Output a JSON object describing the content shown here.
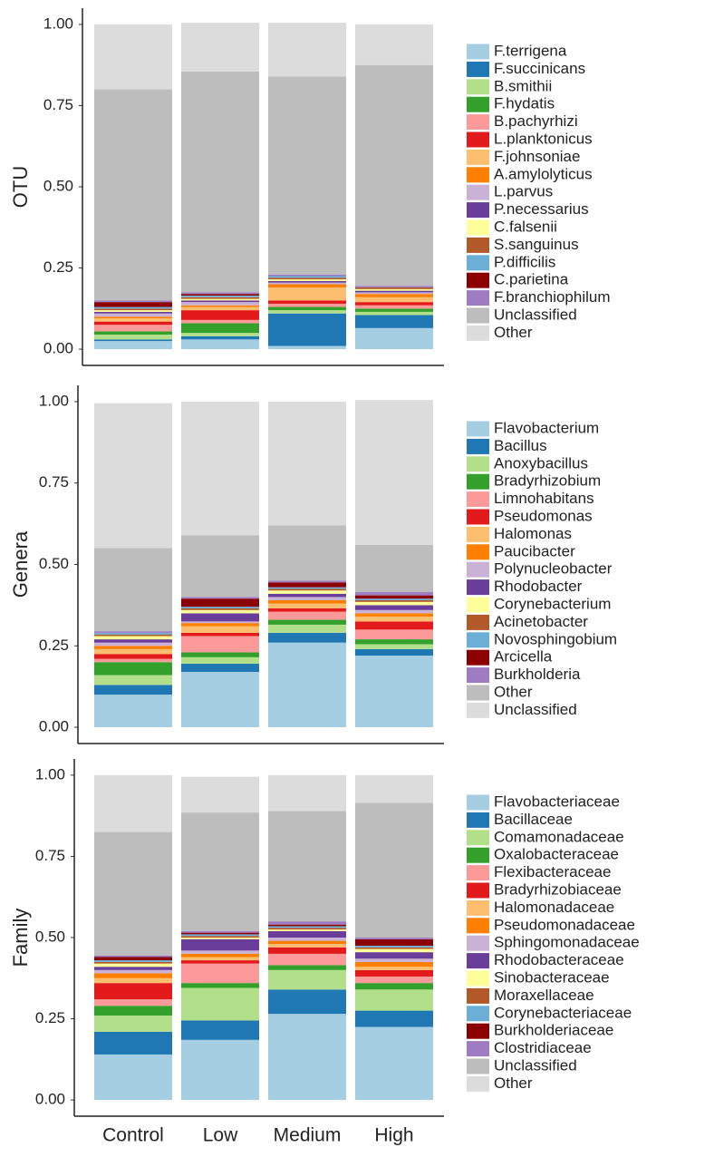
{
  "chart_data": [
    {
      "type": "stacked_bar",
      "ylabel": "OTU",
      "ylim": [
        -0.05,
        1.05
      ],
      "yticks": [
        {
          "value": 0,
          "label": "0.00"
        },
        {
          "value": 0.25,
          "label": "0.25"
        },
        {
          "value": 0.5,
          "label": "0.50"
        },
        {
          "value": 0.75,
          "label": "0.75"
        },
        {
          "value": 1,
          "label": "1.00"
        }
      ],
      "series": [
        {
          "name": "F.terrigena",
          "color": "#a6cee3",
          "values": [
            0.025,
            0.03,
            0.01,
            0.065
          ]
        },
        {
          "name": "F.succinicans",
          "color": "#1f78b4",
          "values": [
            0.005,
            0.01,
            0.1,
            0.04
          ]
        },
        {
          "name": "B.smithii",
          "color": "#b2df8a",
          "values": [
            0.015,
            0.01,
            0.01,
            0.01
          ]
        },
        {
          "name": "F.hydatis",
          "color": "#33a02c",
          "values": [
            0.01,
            0.03,
            0.01,
            0.01
          ]
        },
        {
          "name": "B.pachyrhizi",
          "color": "#fb9a99",
          "values": [
            0.02,
            0.01,
            0.01,
            0.01
          ]
        },
        {
          "name": "L.planktonicus",
          "color": "#e31a1c",
          "values": [
            0.01,
            0.03,
            0.01,
            0.01
          ]
        },
        {
          "name": "F.johnsoniae",
          "color": "#fdbf6f",
          "values": [
            0.01,
            0.01,
            0.04,
            0.015
          ]
        },
        {
          "name": "A.amylolyticus",
          "color": "#ff7f00",
          "values": [
            0.005,
            0.005,
            0.01,
            0.01
          ]
        },
        {
          "name": "L.parvus",
          "color": "#cab2d6",
          "values": [
            0.01,
            0.01,
            0.005,
            0.005
          ]
        },
        {
          "name": "P.necessarius",
          "color": "#6a3d9a",
          "values": [
            0.005,
            0.005,
            0.005,
            0.005
          ]
        },
        {
          "name": "C.falsenii",
          "color": "#ffff99",
          "values": [
            0.005,
            0.005,
            0.005,
            0.005
          ]
        },
        {
          "name": "S.sanguinus",
          "color": "#b15928",
          "values": [
            0.005,
            0.005,
            0.005,
            0.005
          ]
        },
        {
          "name": "P.difficilis",
          "color": "#6baed6",
          "values": [
            0.005,
            0.005,
            0.005,
            0
          ]
        },
        {
          "name": "C.parietina",
          "color": "#8b0000",
          "values": [
            0.015,
            0.005,
            0,
            0
          ]
        },
        {
          "name": "F.branchiophilum",
          "color": "#9e7cc1",
          "values": [
            0.005,
            0.005,
            0.005,
            0.005
          ]
        },
        {
          "name": "Unclassified",
          "color": "#bdbdbd",
          "values": [
            0.65,
            0.68,
            0.61,
            0.68
          ]
        },
        {
          "name": "Other",
          "color": "#dcdcdc",
          "values": [
            0.2,
            0.15,
            0.165,
            0.125
          ]
        }
      ]
    },
    {
      "type": "stacked_bar",
      "ylabel": "Genera",
      "ylim": [
        -0.05,
        1.05
      ],
      "yticks": [
        {
          "value": 0,
          "label": "0.00"
        },
        {
          "value": 0.25,
          "label": "0.25"
        },
        {
          "value": 0.5,
          "label": "0.50"
        },
        {
          "value": 0.75,
          "label": "0.75"
        },
        {
          "value": 1,
          "label": "1.00"
        }
      ],
      "series": [
        {
          "name": "Flavobacterium",
          "color": "#a6cee3",
          "values": [
            0.1,
            0.17,
            0.26,
            0.22
          ]
        },
        {
          "name": "Bacillus",
          "color": "#1f78b4",
          "values": [
            0.03,
            0.025,
            0.03,
            0.02
          ]
        },
        {
          "name": "Anoxybacillus",
          "color": "#b2df8a",
          "values": [
            0.03,
            0.02,
            0.025,
            0.015
          ]
        },
        {
          "name": "Bradyrhizobium",
          "color": "#33a02c",
          "values": [
            0.04,
            0.015,
            0.015,
            0.015
          ]
        },
        {
          "name": "Limnohabitans",
          "color": "#fb9a99",
          "values": [
            0.01,
            0.05,
            0.025,
            0.03
          ]
        },
        {
          "name": "Pseudomonas",
          "color": "#e31a1c",
          "values": [
            0.015,
            0.01,
            0.01,
            0.025
          ]
        },
        {
          "name": "Halomonas",
          "color": "#fdbf6f",
          "values": [
            0.015,
            0.02,
            0.015,
            0.015
          ]
        },
        {
          "name": "Paucibacter",
          "color": "#ff7f00",
          "values": [
            0.01,
            0.01,
            0.01,
            0.01
          ]
        },
        {
          "name": "Polynucleobacter",
          "color": "#cab2d6",
          "values": [
            0.01,
            0.005,
            0.01,
            0.01
          ]
        },
        {
          "name": "Rhodobacter",
          "color": "#6a3d9a",
          "values": [
            0.01,
            0.025,
            0.01,
            0.015
          ]
        },
        {
          "name": "Corynebacterium",
          "color": "#ffff99",
          "values": [
            0.01,
            0.01,
            0.01,
            0.01
          ]
        },
        {
          "name": "Acinetobacter",
          "color": "#b15928",
          "values": [
            0.005,
            0.005,
            0.005,
            0.005
          ]
        },
        {
          "name": "Novosphingobium",
          "color": "#6baed6",
          "values": [
            0.005,
            0.005,
            0.005,
            0.005
          ]
        },
        {
          "name": "Arcicella",
          "color": "#8b0000",
          "values": [
            0,
            0.025,
            0.015,
            0.01
          ]
        },
        {
          "name": "Burkholderia",
          "color": "#9e7cc1",
          "values": [
            0.005,
            0.005,
            0.005,
            0.01
          ]
        },
        {
          "name": "Other",
          "color": "#bdbdbd",
          "values": [
            0.255,
            0.19,
            0.17,
            0.145
          ]
        },
        {
          "name": "Unclassified",
          "color": "#dcdcdc",
          "values": [
            0.445,
            0.41,
            0.38,
            0.445
          ]
        }
      ]
    },
    {
      "type": "stacked_bar",
      "ylabel": "Family",
      "ylim": [
        -0.05,
        1.05
      ],
      "yticks": [
        {
          "value": 0,
          "label": "0.00"
        },
        {
          "value": 0.25,
          "label": "0.25"
        },
        {
          "value": 0.5,
          "label": "0.50"
        },
        {
          "value": 0.75,
          "label": "0.75"
        },
        {
          "value": 1,
          "label": "1.00"
        }
      ],
      "categories": [
        "Control",
        "Low",
        "Medium",
        "High"
      ],
      "series": [
        {
          "name": "Flavobacteriaceae",
          "color": "#a6cee3",
          "values": [
            0.14,
            0.185,
            0.265,
            0.225
          ]
        },
        {
          "name": "Bacillaceae",
          "color": "#1f78b4",
          "values": [
            0.07,
            0.06,
            0.075,
            0.05
          ]
        },
        {
          "name": "Comamonadaceae",
          "color": "#b2df8a",
          "values": [
            0.05,
            0.1,
            0.06,
            0.065
          ]
        },
        {
          "name": "Oxalobacteraceae",
          "color": "#33a02c",
          "values": [
            0.03,
            0.015,
            0.015,
            0.02
          ]
        },
        {
          "name": "Flexibacteraceae",
          "color": "#fb9a99",
          "values": [
            0.02,
            0.06,
            0.035,
            0.02
          ]
        },
        {
          "name": "Bradyrhizobiaceae",
          "color": "#e31a1c",
          "values": [
            0.05,
            0.01,
            0.02,
            0.02
          ]
        },
        {
          "name": "Halomonadaceae",
          "color": "#fdbf6f",
          "values": [
            0.015,
            0.01,
            0.01,
            0.01
          ]
        },
        {
          "name": "Pseudomonadaceae",
          "color": "#ff7f00",
          "values": [
            0.015,
            0.01,
            0.01,
            0.015
          ]
        },
        {
          "name": "Sphingomonadaceae",
          "color": "#cab2d6",
          "values": [
            0.01,
            0.01,
            0.01,
            0.01
          ]
        },
        {
          "name": "Rhodobacteraceae",
          "color": "#6a3d9a",
          "values": [
            0.01,
            0.035,
            0.02,
            0.02
          ]
        },
        {
          "name": "Sinobacteraceae",
          "color": "#ffff99",
          "values": [
            0.01,
            0.005,
            0.005,
            0.01
          ]
        },
        {
          "name": "Moraxellaceae",
          "color": "#b15928",
          "values": [
            0.005,
            0.005,
            0.005,
            0.005
          ]
        },
        {
          "name": "Corynebacteriaceae",
          "color": "#6baed6",
          "values": [
            0.005,
            0.005,
            0.005,
            0.005
          ]
        },
        {
          "name": "Burkholderiaceae",
          "color": "#8b0000",
          "values": [
            0.01,
            0.005,
            0.005,
            0.02
          ]
        },
        {
          "name": "Clostridiaceae",
          "color": "#9e7cc1",
          "values": [
            0.005,
            0.005,
            0.01,
            0.005
          ]
        },
        {
          "name": "Unclassified",
          "color": "#bdbdbd",
          "values": [
            0.38,
            0.365,
            0.34,
            0.415
          ]
        },
        {
          "name": "Other",
          "color": "#dcdcdc",
          "values": [
            0.175,
            0.11,
            0.11,
            0.085
          ]
        }
      ]
    }
  ]
}
